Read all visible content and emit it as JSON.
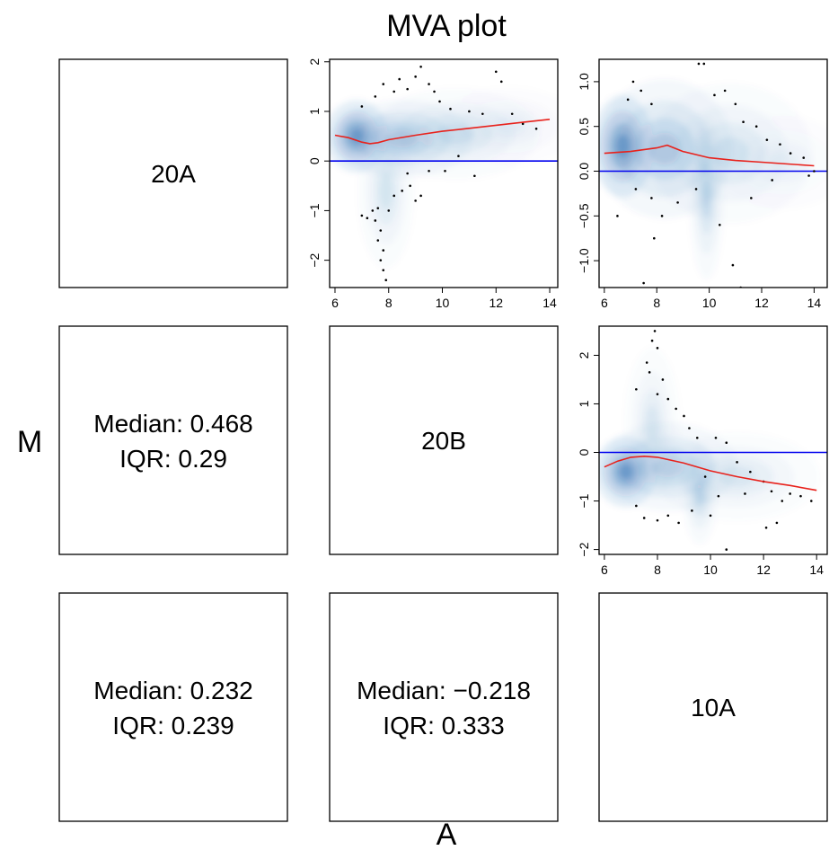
{
  "title": "MVA plot",
  "xlabel": "A",
  "ylabel": "M",
  "colors": {
    "density": "#2166ac",
    "reference_line": "#0000ee",
    "loess_line": "#e8221c",
    "outlier_points": "#000000"
  },
  "cells": {
    "diag_20A": "20A",
    "diag_20B": "20B",
    "diag_10A": "10A",
    "stat_20B_20A": {
      "median": "Median: 0.468",
      "iqr": "IQR: 0.29"
    },
    "stat_10A_20A": {
      "median": "Median: 0.232",
      "iqr": "IQR: 0.239"
    },
    "stat_10A_20B": {
      "median": "Median: −0.218",
      "iqr": "IQR: 0.333"
    }
  },
  "chart_data": [
    {
      "type": "scatter",
      "panel": "20A vs 20B",
      "xlim": [
        5.8,
        14.3
      ],
      "ylim": [
        -2.55,
        2.05
      ],
      "xticks": [
        "6",
        "8",
        "10",
        "12",
        "14"
      ],
      "yticks": [
        "−2",
        "−1",
        "0",
        "1",
        "2"
      ],
      "reference_y": 0,
      "density_clusters": [
        {
          "x": 6.8,
          "y": 0.5,
          "sx": 0.45,
          "sy": 0.28,
          "w": 1.0
        },
        {
          "x": 8.5,
          "y": 0.45,
          "sx": 1.0,
          "sy": 0.3,
          "w": 0.45
        },
        {
          "x": 7.9,
          "y": -0.6,
          "sx": 0.4,
          "sy": 0.6,
          "w": 0.22
        },
        {
          "x": 10.5,
          "y": 0.55,
          "sx": 1.2,
          "sy": 0.35,
          "w": 0.22
        },
        {
          "x": 12.5,
          "y": 0.7,
          "sx": 1.0,
          "sy": 0.3,
          "w": 0.12
        }
      ],
      "loess": {
        "x": [
          6,
          6.5,
          7,
          7.3,
          7.6,
          8,
          9,
          10,
          11,
          12,
          13,
          14
        ],
        "y": [
          0.52,
          0.47,
          0.38,
          0.35,
          0.37,
          0.43,
          0.52,
          0.6,
          0.66,
          0.72,
          0.78,
          0.84
        ]
      },
      "outliers": [
        [
          7.9,
          -2.4
        ],
        [
          7.8,
          -2.2
        ],
        [
          7.7,
          -2.0
        ],
        [
          7.8,
          -1.8
        ],
        [
          7.6,
          -1.6
        ],
        [
          7.7,
          -1.4
        ],
        [
          7.5,
          -1.2
        ],
        [
          7.4,
          -1.0
        ],
        [
          7.2,
          -1.15
        ],
        [
          7.0,
          -1.1
        ],
        [
          7.6,
          -0.95
        ],
        [
          8.0,
          -1.0
        ],
        [
          8.2,
          -0.7
        ],
        [
          8.5,
          -0.6
        ],
        [
          8.8,
          -0.5
        ],
        [
          9.0,
          -0.8
        ],
        [
          9.2,
          -0.7
        ],
        [
          8.7,
          -0.25
        ],
        [
          9.5,
          -0.2
        ],
        [
          10.1,
          -0.2
        ],
        [
          11.2,
          -0.3
        ],
        [
          10.6,
          0.1
        ],
        [
          7.0,
          1.1
        ],
        [
          7.5,
          1.3
        ],
        [
          7.8,
          1.55
        ],
        [
          8.2,
          1.4
        ],
        [
          8.4,
          1.65
        ],
        [
          8.7,
          1.45
        ],
        [
          9.0,
          1.7
        ],
        [
          9.2,
          1.9
        ],
        [
          9.5,
          1.55
        ],
        [
          9.7,
          1.4
        ],
        [
          9.9,
          1.2
        ],
        [
          10.3,
          1.05
        ],
        [
          11.0,
          1.0
        ],
        [
          11.5,
          0.95
        ],
        [
          12.0,
          1.8
        ],
        [
          12.2,
          1.6
        ],
        [
          13.0,
          0.75
        ],
        [
          13.5,
          0.65
        ],
        [
          12.6,
          0.95
        ]
      ]
    },
    {
      "type": "scatter",
      "panel": "20A vs 10A",
      "xlim": [
        5.8,
        14.5
      ],
      "ylim": [
        -1.3,
        1.25
      ],
      "xticks": [
        "6",
        "8",
        "10",
        "12",
        "14"
      ],
      "yticks": [
        "−1.0",
        "−0.5",
        "0.0",
        "0.5",
        "1.0"
      ],
      "reference_y": 0,
      "density_clusters": [
        {
          "x": 6.7,
          "y": 0.28,
          "sx": 0.45,
          "sy": 0.22,
          "w": 1.0
        },
        {
          "x": 8.3,
          "y": 0.25,
          "sx": 1.0,
          "sy": 0.3,
          "w": 0.45
        },
        {
          "x": 9.9,
          "y": -0.3,
          "sx": 0.25,
          "sy": 0.35,
          "w": 0.3
        },
        {
          "x": 10.8,
          "y": 0.2,
          "sx": 1.2,
          "sy": 0.3,
          "w": 0.22
        },
        {
          "x": 12.8,
          "y": 0.1,
          "sx": 1.0,
          "sy": 0.2,
          "w": 0.1
        }
      ],
      "loess": {
        "x": [
          6,
          7,
          8,
          8.4,
          9,
          10,
          11,
          12,
          13,
          14
        ],
        "y": [
          0.2,
          0.22,
          0.26,
          0.29,
          0.22,
          0.15,
          0.12,
          0.1,
          0.08,
          0.06
        ]
      },
      "outliers": [
        [
          7.1,
          1.0
        ],
        [
          7.4,
          0.9
        ],
        [
          6.9,
          0.8
        ],
        [
          7.8,
          0.75
        ],
        [
          9.6,
          1.2
        ],
        [
          9.8,
          1.2
        ],
        [
          10.2,
          0.85
        ],
        [
          10.6,
          0.9
        ],
        [
          11.0,
          0.75
        ],
        [
          11.3,
          0.55
        ],
        [
          11.8,
          0.5
        ],
        [
          12.2,
          0.35
        ],
        [
          12.7,
          0.3
        ],
        [
          13.1,
          0.2
        ],
        [
          13.6,
          0.15
        ],
        [
          14.0,
          0.0
        ],
        [
          13.8,
          -0.05
        ],
        [
          7.2,
          -0.2
        ],
        [
          7.8,
          -0.3
        ],
        [
          8.2,
          -0.5
        ],
        [
          8.8,
          -0.35
        ],
        [
          9.5,
          -0.2
        ],
        [
          10.4,
          -0.6
        ],
        [
          11.6,
          -0.3
        ],
        [
          12.4,
          -0.1
        ],
        [
          7.5,
          -1.25
        ],
        [
          7.9,
          -0.75
        ],
        [
          10.9,
          -1.05
        ],
        [
          11.2,
          -1.3
        ],
        [
          6.5,
          -0.5
        ]
      ]
    },
    {
      "type": "scatter",
      "panel": "20B vs 10A",
      "xlim": [
        5.8,
        14.4
      ],
      "ylim": [
        -2.1,
        2.6
      ],
      "xticks": [
        "6",
        "8",
        "10",
        "12",
        "14"
      ],
      "yticks": [
        "−2",
        "−1",
        "0",
        "1",
        "2"
      ],
      "reference_y": 0,
      "density_clusters": [
        {
          "x": 6.8,
          "y": -0.4,
          "sx": 0.45,
          "sy": 0.28,
          "w": 1.0
        },
        {
          "x": 8.4,
          "y": -0.3,
          "sx": 1.0,
          "sy": 0.35,
          "w": 0.4
        },
        {
          "x": 9.6,
          "y": -0.85,
          "sx": 0.25,
          "sy": 0.4,
          "w": 0.3
        },
        {
          "x": 7.8,
          "y": 0.6,
          "sx": 0.4,
          "sy": 0.6,
          "w": 0.2
        },
        {
          "x": 11.0,
          "y": -0.5,
          "sx": 1.2,
          "sy": 0.35,
          "w": 0.2
        }
      ],
      "loess": {
        "x": [
          6,
          6.5,
          7,
          7.5,
          8,
          9,
          10,
          11,
          12,
          13,
          14
        ],
        "y": [
          -0.3,
          -0.18,
          -0.1,
          -0.08,
          -0.1,
          -0.22,
          -0.38,
          -0.5,
          -0.6,
          -0.68,
          -0.78
        ]
      },
      "outliers": [
        [
          7.9,
          2.5
        ],
        [
          7.8,
          2.3
        ],
        [
          8.0,
          2.15
        ],
        [
          7.6,
          1.85
        ],
        [
          7.7,
          1.65
        ],
        [
          8.2,
          1.5
        ],
        [
          8.0,
          1.2
        ],
        [
          8.4,
          1.1
        ],
        [
          8.7,
          0.9
        ],
        [
          9.0,
          0.75
        ],
        [
          7.2,
          1.3
        ],
        [
          9.2,
          0.5
        ],
        [
          9.5,
          0.3
        ],
        [
          10.2,
          0.3
        ],
        [
          10.6,
          0.2
        ],
        [
          11.0,
          -0.2
        ],
        [
          11.5,
          -0.4
        ],
        [
          12.0,
          -0.6
        ],
        [
          12.3,
          -0.8
        ],
        [
          12.7,
          -1.0
        ],
        [
          13.0,
          -0.85
        ],
        [
          13.4,
          -0.9
        ],
        [
          13.8,
          -1.0
        ],
        [
          12.5,
          -1.45
        ],
        [
          12.1,
          -1.55
        ],
        [
          10.6,
          -2.0
        ],
        [
          7.2,
          -1.1
        ],
        [
          7.5,
          -1.35
        ],
        [
          8.0,
          -1.4
        ],
        [
          8.4,
          -1.3
        ],
        [
          8.8,
          -1.45
        ],
        [
          9.3,
          -1.2
        ],
        [
          10.0,
          -1.3
        ],
        [
          10.3,
          -0.9
        ],
        [
          11.3,
          -0.85
        ],
        [
          9.8,
          -0.5
        ]
      ]
    }
  ]
}
